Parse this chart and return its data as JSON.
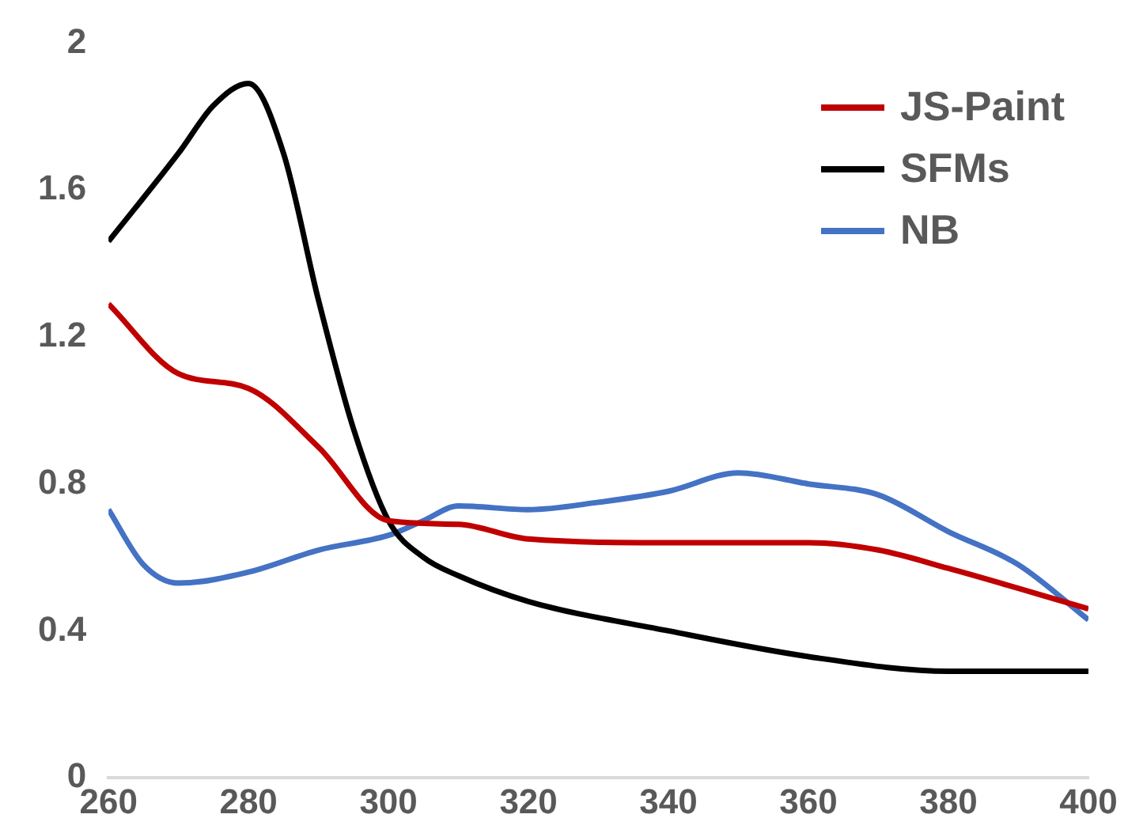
{
  "chart_data": {
    "type": "line",
    "legend": "top right",
    "grid": false,
    "marker": "none",
    "line_style": "solid",
    "xlim": [
      260,
      400
    ],
    "xticks": [
      260,
      280,
      300,
      320,
      340,
      360,
      380,
      400
    ],
    "ylim": [
      0,
      2
    ],
    "yticks": [
      0,
      0.4,
      0.8,
      1.2,
      1.6,
      2
    ],
    "series": [
      {
        "name": "JS-Paint",
        "color": "#c00000",
        "x": [
          260,
          270,
          280,
          290,
          300,
          310,
          320,
          340,
          350,
          360,
          370,
          380,
          400
        ],
        "values": [
          1.29,
          1.1,
          1.06,
          0.9,
          0.7,
          0.69,
          0.65,
          0.64,
          0.64,
          0.64,
          0.62,
          0.57,
          0.46
        ]
      },
      {
        "name": "SFMs",
        "color": "#000000",
        "x": [
          260,
          270,
          275,
          280,
          285,
          290,
          295,
          300,
          305,
          310,
          320,
          340,
          360,
          380,
          400
        ],
        "values": [
          1.46,
          1.7,
          1.83,
          1.89,
          1.7,
          1.3,
          0.95,
          0.7,
          0.6,
          0.55,
          0.48,
          0.4,
          0.33,
          0.29,
          0.29
        ]
      },
      {
        "name": "NB",
        "color": "#4472c4",
        "x": [
          260,
          265,
          270,
          280,
          290,
          300,
          305,
          310,
          320,
          330,
          340,
          350,
          360,
          370,
          380,
          390,
          400
        ],
        "values": [
          0.73,
          0.58,
          0.53,
          0.56,
          0.62,
          0.66,
          0.7,
          0.74,
          0.73,
          0.75,
          0.78,
          0.83,
          0.8,
          0.77,
          0.67,
          0.58,
          0.43
        ]
      }
    ]
  }
}
